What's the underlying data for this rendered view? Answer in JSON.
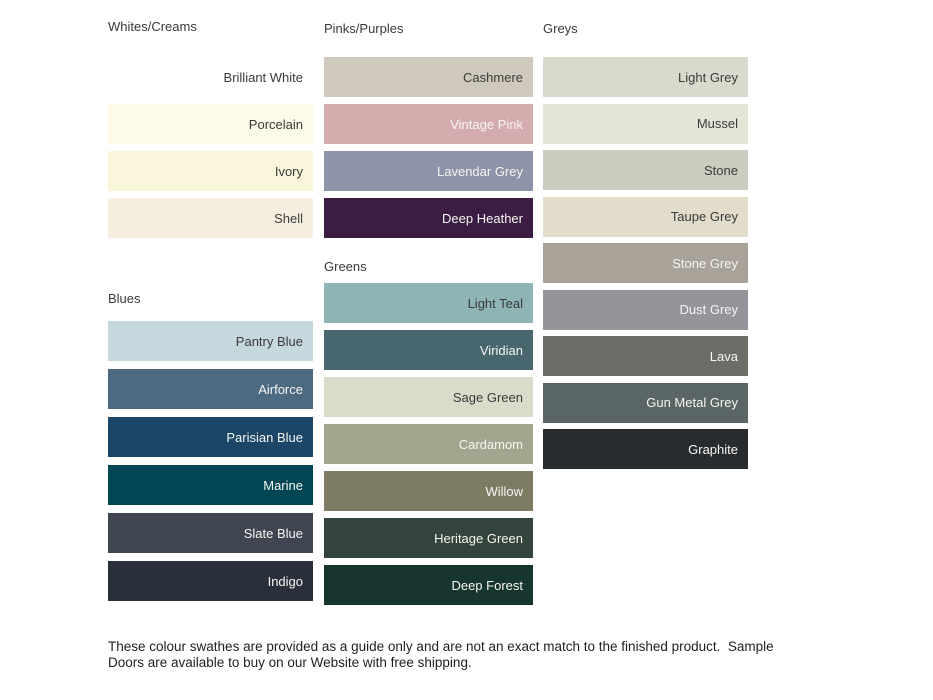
{
  "page": {
    "background": "#ffffff",
    "footer": {
      "lines": [
        "These colour swathes are provided as a guide only and are not an exact match to the finished product.  Sample",
        "Doors are available to buy on our Website with free shipping."
      ]
    }
  },
  "text_colors": {
    "dark": "#3b3b3b",
    "light": "#f6f5f2"
  },
  "columns": [
    {
      "id": "col1",
      "sections": [
        {
          "header": "Whites/Creams",
          "swatches": [
            {
              "label": "Brilliant White",
              "color": "#ffffff",
              "text": "dark"
            },
            {
              "label": "Porcelain",
              "color": "#fdfbe8",
              "text": "dark"
            },
            {
              "label": "Ivory",
              "color": "#faf6d9",
              "text": "dark"
            },
            {
              "label": "Shell",
              "color": "#f6efe0",
              "text": "dark"
            }
          ]
        },
        {
          "header": "Blues",
          "swatches": [
            {
              "label": "Pantry Blue",
              "color": "#c5d8de",
              "text": "dark"
            },
            {
              "label": "Airforce",
              "color": "#4d6a83",
              "text": "light"
            },
            {
              "label": "Parisian Blue",
              "color": "#1b4668",
              "text": "light"
            },
            {
              "label": "Marine",
              "color": "#004655",
              "text": "light"
            },
            {
              "label": "Slate Blue",
              "color": "#3f4652",
              "text": "light"
            },
            {
              "label": "Indigo",
              "color": "#2a303b",
              "text": "light"
            }
          ]
        }
      ]
    },
    {
      "id": "col2",
      "sections": [
        {
          "header": "Pinks/Purples",
          "swatches": [
            {
              "label": "Cashmere",
              "color": "#cfc9bb",
              "text": "dark"
            },
            {
              "label": "Vintage Pink",
              "color": "#d5acad",
              "text": "light"
            },
            {
              "label": "Lavendar Grey",
              "color": "#8d93a8",
              "text": "light"
            },
            {
              "label": "Deep Heather",
              "color": "#3b1c42",
              "text": "light"
            }
          ]
        },
        {
          "header": "Greens",
          "swatches": [
            {
              "label": "Light Teal",
              "color": "#8fb4b6",
              "text": "dark"
            },
            {
              "label": "Viridian",
              "color": "#47666e",
              "text": "light"
            },
            {
              "label": "Sage Green",
              "color": "#d9dcc8",
              "text": "dark"
            },
            {
              "label": "Cardamom",
              "color": "#a4a58e",
              "text": "light"
            },
            {
              "label": "Willow",
              "color": "#7e7b64",
              "text": "light"
            },
            {
              "label": "Heritage Green",
              "color": "#32443b",
              "text": "light"
            },
            {
              "label": "Deep Forest",
              "color": "#16352e",
              "text": "light"
            }
          ]
        }
      ]
    },
    {
      "id": "col3",
      "sections": [
        {
          "header": "Greys",
          "swatches": [
            {
              "label": "Light Grey",
              "color": "#d8dacb",
              "text": "dark"
            },
            {
              "label": "Mussel",
              "color": "#e4e6d5",
              "text": "dark"
            },
            {
              "label": "Stone",
              "color": "#cbcebf",
              "text": "dark"
            },
            {
              "label": "Taupe Grey",
              "color": "#e2dcca",
              "text": "dark"
            },
            {
              "label": "Stone Grey",
              "color": "#a8a298",
              "text": "light"
            },
            {
              "label": "Dust Grey",
              "color": "#94959b",
              "text": "light"
            },
            {
              "label": "Lava",
              "color": "#6c6d66",
              "text": "light"
            },
            {
              "label": "Gun Metal Grey",
              "color": "#5a6665",
              "text": "light"
            },
            {
              "label": "Graphite",
              "color": "#282c2f",
              "text": "light"
            }
          ]
        }
      ]
    }
  ]
}
